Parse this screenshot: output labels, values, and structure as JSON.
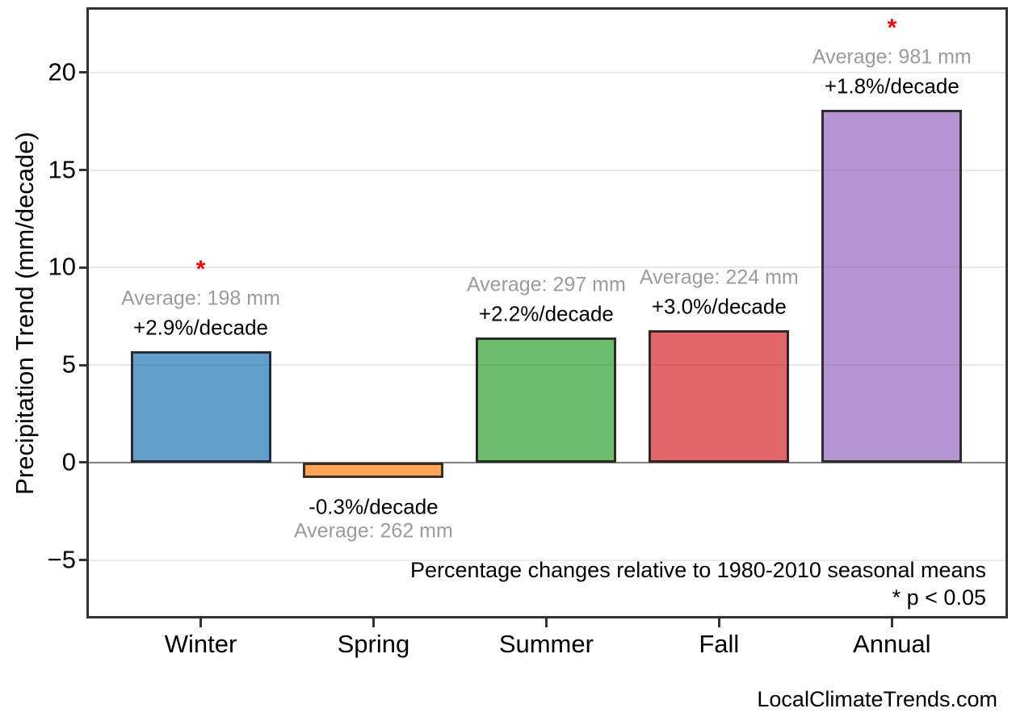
{
  "page": {
    "watermark": "LocalClimateTrends.com"
  },
  "colors": {
    "grid": "#e8e8e8",
    "zero_line": "#808080",
    "spine": "#333333",
    "avg_text": "#9b9b9b",
    "trend_text": "#000000",
    "significance": "#ff0000",
    "bar_edge": "rgba(25,25,25,0.85)"
  },
  "chart_data": {
    "type": "bar",
    "title": "",
    "xlabel": "",
    "ylabel": "Precipitation Trend (mm/decade)",
    "categories": [
      "Winter",
      "Spring",
      "Summer",
      "Fall",
      "Annual"
    ],
    "values": [
      5.7,
      -0.8,
      6.4,
      6.8,
      18.1
    ],
    "bar_colors": [
      "#1f77b4",
      "#ff7f0e",
      "#2ca02c",
      "#d62728",
      "#9467bd"
    ],
    "bar_fill_alpha": 0.7,
    "average_labels": [
      "Average: 198 mm",
      "Average: 262 mm",
      "Average: 297 mm",
      "Average: 224 mm",
      "Average: 981 mm"
    ],
    "averages_mm": [
      198,
      262,
      297,
      224,
      981
    ],
    "trend_labels": [
      "+2.9%/decade",
      "-0.3%/decade",
      "+2.2%/decade",
      "+3.0%/decade",
      "+1.8%/decade"
    ],
    "significant": [
      true,
      false,
      false,
      false,
      true
    ],
    "significance_marker": "*",
    "yticks": [
      {
        "value": -5,
        "label": "−5"
      },
      {
        "value": 0,
        "label": "0"
      },
      {
        "value": 5,
        "label": "5"
      },
      {
        "value": 10,
        "label": "10"
      },
      {
        "value": 15,
        "label": "15"
      },
      {
        "value": 20,
        "label": "20"
      }
    ],
    "ylim": [
      -7.87,
      23.23
    ],
    "grid": "horizontal",
    "zero_line": true,
    "legend": "none",
    "annotations": [
      "Percentage changes relative to 1980-2010 seasonal means",
      "* p < 0.05"
    ]
  }
}
